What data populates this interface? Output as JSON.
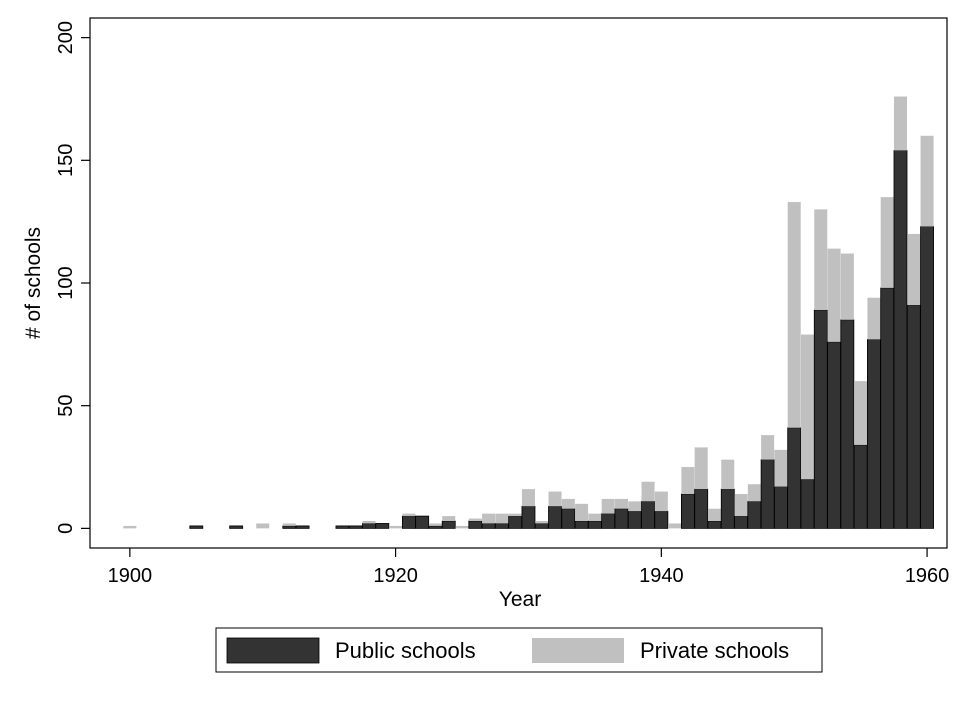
{
  "chart_data": {
    "type": "bar",
    "stacked": true,
    "title": "",
    "xlabel": "Year",
    "ylabel": "# of schools",
    "xlim": [
      1897,
      1961.5
    ],
    "ylim": [
      -8,
      208
    ],
    "xticks": [
      1900,
      1920,
      1940,
      1960
    ],
    "yticks": [
      0,
      50,
      100,
      150,
      200
    ],
    "grid": false,
    "legend_position": "bottom",
    "x": [
      1900,
      1905,
      1908,
      1910,
      1912,
      1913,
      1916,
      1917,
      1918,
      1919,
      1920,
      1921,
      1922,
      1923,
      1924,
      1925,
      1926,
      1927,
      1928,
      1929,
      1930,
      1931,
      1932,
      1933,
      1934,
      1935,
      1936,
      1937,
      1938,
      1939,
      1940,
      1941,
      1942,
      1943,
      1944,
      1945,
      1946,
      1947,
      1948,
      1949,
      1950,
      1951,
      1952,
      1953,
      1954,
      1955,
      1956,
      1957,
      1958,
      1959,
      1960
    ],
    "series": [
      {
        "name": "Public schools",
        "color": "#333333",
        "values": [
          0,
          1,
          1,
          0,
          1,
          1,
          1,
          1,
          2,
          2,
          0,
          5,
          5,
          1,
          3,
          0,
          3,
          2,
          2,
          5,
          9,
          2,
          9,
          8,
          3,
          3,
          6,
          8,
          7,
          11,
          7,
          0,
          14,
          16,
          3,
          16,
          5,
          11,
          28,
          17,
          41,
          20,
          89,
          76,
          85,
          34,
          77,
          98,
          154,
          91,
          123
        ]
      },
      {
        "name": "Private schools",
        "color": "#c0c0c0",
        "values": [
          1,
          0,
          0,
          2,
          1,
          0,
          0,
          0,
          1,
          0,
          1,
          1,
          0,
          1,
          2,
          1,
          1,
          4,
          4,
          1,
          7,
          1,
          6,
          4,
          7,
          3,
          6,
          4,
          4,
          8,
          8,
          2,
          11,
          17,
          5,
          12,
          9,
          7,
          10,
          15,
          92,
          59,
          41,
          38,
          27,
          26,
          17,
          37,
          22,
          29,
          37
        ]
      }
    ],
    "legend": {
      "public_label": "Public schools",
      "private_label": "Private schools"
    }
  }
}
